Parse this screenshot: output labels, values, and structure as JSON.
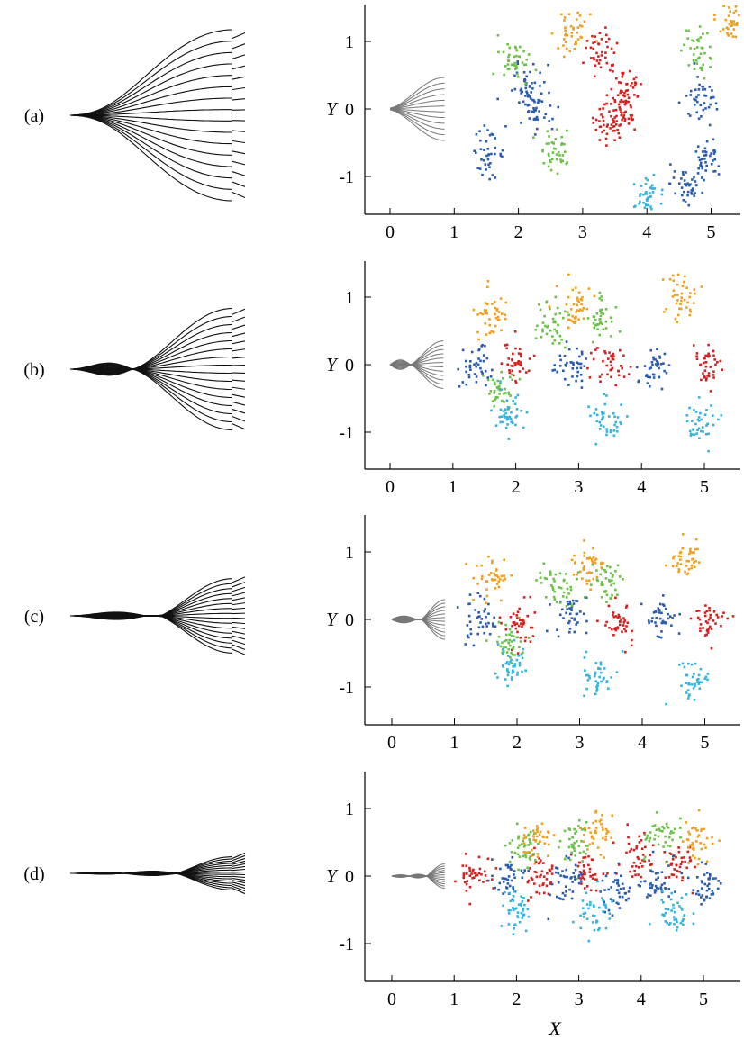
{
  "figure": {
    "x_axis_label": "X",
    "y_axis_label": "Y",
    "panels": [
      {
        "label": "(a)",
        "waveform_envelope": "single-bulge"
      },
      {
        "label": "(b)",
        "waveform_envelope": "two-lobe"
      },
      {
        "label": "(c)",
        "waveform_envelope": "two-lobe-narrow"
      },
      {
        "label": "(d)",
        "waveform_envelope": "three-lobe"
      }
    ]
  },
  "chart_data": [
    {
      "type": "scatter",
      "panel": "(a)",
      "xlabel": "",
      "ylabel": "Y",
      "xlim": [
        -0.35,
        5.6
      ],
      "ylim": [
        -1.5,
        1.5
      ],
      "x_ticks": [
        "0",
        "1",
        "2",
        "3",
        "4",
        "5"
      ],
      "y_ticks": [
        "1",
        "0",
        "-1"
      ],
      "series": [
        {
          "color": "#d62020",
          "values": [
            [
              3.4,
              -0.2
            ],
            [
              3.25,
              0.9
            ],
            [
              3.65,
              0.35
            ],
            [
              3.6,
              -0.05
            ]
          ]
        },
        {
          "color": "#2a5cae",
          "values": [
            [
              2.1,
              0.35
            ],
            [
              2.25,
              0.0
            ],
            [
              4.85,
              0.15
            ],
            [
              1.5,
              -0.65
            ],
            [
              4.6,
              -1.1
            ],
            [
              4.9,
              -0.7
            ]
          ]
        },
        {
          "color": "#6cc04a",
          "values": [
            [
              2.55,
              -0.55
            ],
            [
              1.95,
              0.7
            ],
            [
              4.8,
              0.85
            ]
          ]
        },
        {
          "color": "#f2a01c",
          "values": [
            [
              2.8,
              1.15
            ],
            [
              5.3,
              1.35
            ]
          ]
        },
        {
          "color": "#33b4e0",
          "values": [
            [
              4.0,
              -1.25
            ]
          ]
        }
      ]
    },
    {
      "type": "scatter",
      "panel": "(b)",
      "xlabel": "",
      "ylabel": "Y",
      "xlim": [
        -0.35,
        5.4
      ],
      "ylim": [
        -1.5,
        1.5
      ],
      "x_ticks": [
        "0",
        "1",
        "2",
        "3",
        "4",
        "5"
      ],
      "y_ticks": [
        "1",
        "0",
        "-1"
      ],
      "series": [
        {
          "color": "#d62020",
          "values": [
            [
              2.0,
              0.05
            ],
            [
              3.5,
              0.0
            ],
            [
              5.0,
              0.0
            ]
          ]
        },
        {
          "color": "#2a5cae",
          "values": [
            [
              1.3,
              0.0
            ],
            [
              2.85,
              0.0
            ],
            [
              4.2,
              0.0
            ]
          ]
        },
        {
          "color": "#6cc04a",
          "values": [
            [
              1.75,
              -0.35
            ],
            [
              2.55,
              0.6
            ],
            [
              3.3,
              0.7
            ]
          ]
        },
        {
          "color": "#f2a01c",
          "values": [
            [
              1.6,
              0.75
            ],
            [
              3.0,
              0.9
            ],
            [
              4.6,
              1.0
            ]
          ]
        },
        {
          "color": "#33b4e0",
          "values": [
            [
              1.9,
              -0.7
            ],
            [
              3.4,
              -0.8
            ],
            [
              4.9,
              -0.85
            ]
          ]
        }
      ]
    },
    {
      "type": "scatter",
      "panel": "(c)",
      "xlabel": "",
      "ylabel": "Y",
      "xlim": [
        -0.35,
        5.5
      ],
      "ylim": [
        -1.5,
        1.5
      ],
      "x_ticks": [
        "0",
        "1",
        "2",
        "3",
        "4",
        "5"
      ],
      "y_ticks": [
        "1",
        "0",
        "-1"
      ],
      "series": [
        {
          "color": "#d62020",
          "values": [
            [
              2.05,
              -0.05
            ],
            [
              3.6,
              0.0
            ],
            [
              5.05,
              0.0
            ]
          ]
        },
        {
          "color": "#2a5cae",
          "values": [
            [
              1.35,
              0.05
            ],
            [
              2.85,
              0.05
            ],
            [
              4.3,
              0.0
            ]
          ]
        },
        {
          "color": "#6cc04a",
          "values": [
            [
              1.8,
              -0.3
            ],
            [
              2.6,
              0.55
            ],
            [
              3.4,
              0.6
            ]
          ]
        },
        {
          "color": "#f2a01c",
          "values": [
            [
              1.6,
              0.6
            ],
            [
              3.1,
              0.8
            ],
            [
              4.7,
              0.9
            ]
          ]
        },
        {
          "color": "#33b4e0",
          "values": [
            [
              1.9,
              -0.7
            ],
            [
              3.3,
              -0.8
            ],
            [
              4.8,
              -0.9
            ]
          ]
        }
      ]
    },
    {
      "type": "scatter",
      "panel": "(d)",
      "xlabel": "X",
      "ylabel": "Y",
      "xlim": [
        -0.35,
        5.6
      ],
      "ylim": [
        -1.5,
        1.5
      ],
      "x_ticks": [
        "0",
        "1",
        "2",
        "3",
        "4",
        "5"
      ],
      "y_ticks": [
        "1",
        "0",
        "-1"
      ],
      "series": [
        {
          "color": "#d62020",
          "values": [
            [
              1.3,
              0.0
            ],
            [
              2.35,
              0.0
            ],
            [
              3.1,
              0.05
            ],
            [
              3.9,
              0.3
            ],
            [
              4.6,
              0.2
            ]
          ]
        },
        {
          "color": "#2a5cae",
          "values": [
            [
              1.85,
              0.0
            ],
            [
              2.75,
              -0.05
            ],
            [
              3.6,
              -0.2
            ],
            [
              4.2,
              -0.1
            ],
            [
              5.0,
              -0.15
            ]
          ]
        },
        {
          "color": "#6cc04a",
          "values": [
            [
              2.1,
              0.45
            ],
            [
              2.9,
              0.55
            ],
            [
              4.3,
              0.6
            ]
          ]
        },
        {
          "color": "#f2a01c",
          "values": [
            [
              2.3,
              0.55
            ],
            [
              3.3,
              0.65
            ],
            [
              4.9,
              0.5
            ]
          ]
        },
        {
          "color": "#33b4e0",
          "values": [
            [
              2.0,
              -0.5
            ],
            [
              3.2,
              -0.55
            ],
            [
              4.5,
              -0.55
            ]
          ]
        }
      ]
    }
  ]
}
